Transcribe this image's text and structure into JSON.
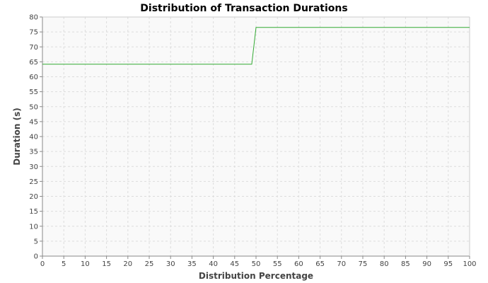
{
  "chart_data": {
    "type": "line",
    "title": "Distribution of Transaction Durations",
    "xlabel": "Distribution Percentage",
    "ylabel": "Duration (s)",
    "xlim": [
      0,
      100
    ],
    "ylim": [
      0,
      80
    ],
    "x_ticks": [
      0,
      5,
      10,
      15,
      20,
      25,
      30,
      35,
      40,
      45,
      50,
      55,
      60,
      65,
      70,
      75,
      80,
      85,
      90,
      95,
      100
    ],
    "y_ticks": [
      0,
      5,
      10,
      15,
      20,
      25,
      30,
      35,
      40,
      45,
      50,
      55,
      60,
      65,
      70,
      75,
      80
    ],
    "grid": true,
    "legend": "none",
    "series": [
      {
        "color": "#33aa33",
        "points": [
          {
            "x": 0,
            "y": 64.2
          },
          {
            "x": 49,
            "y": 64.2
          },
          {
            "x": 50,
            "y": 76.5
          },
          {
            "x": 100,
            "y": 76.5
          }
        ]
      }
    ],
    "colors": {
      "plot_background": "#f9f9f9",
      "grid": "#dddddd",
      "axis": "#888888"
    }
  }
}
